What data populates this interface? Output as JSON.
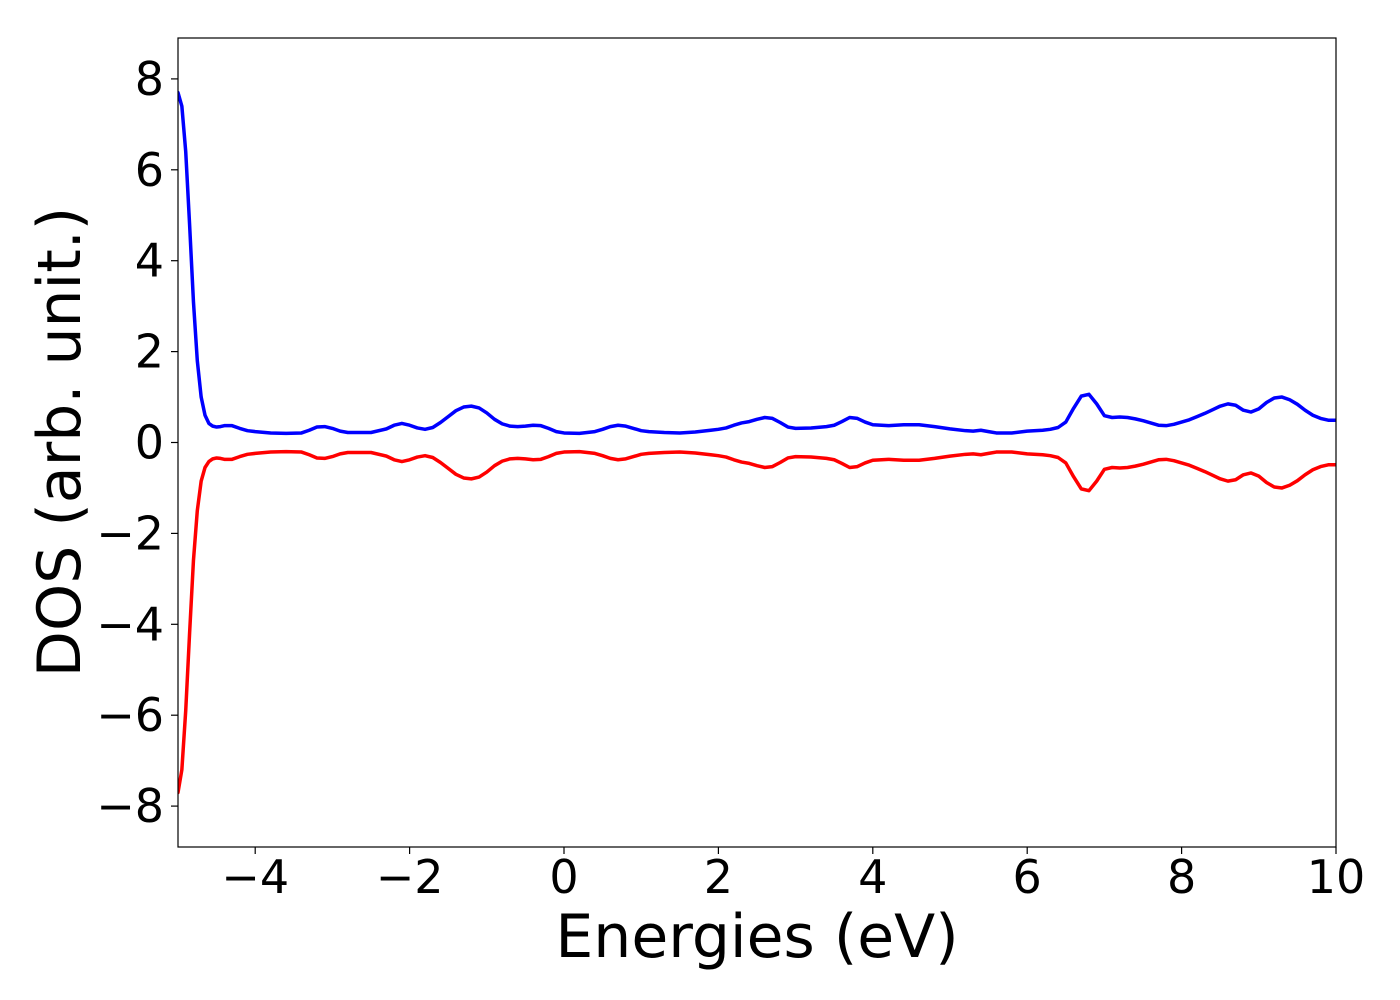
{
  "chart_data": {
    "type": "line",
    "title": "",
    "xlabel": "Energies (eV)",
    "ylabel": "DOS (arb. unit.)",
    "xlim": [
      -5,
      10
    ],
    "ylim": [
      -8.9,
      8.9
    ],
    "x_ticks": [
      -4,
      -2,
      0,
      2,
      4,
      6,
      8,
      10
    ],
    "x_tick_labels": [
      "−4",
      "−2",
      "0",
      "2",
      "4",
      "6",
      "8",
      "10"
    ],
    "y_ticks": [
      8,
      6,
      4,
      2,
      0,
      -2,
      -4,
      -6,
      -8
    ],
    "y_tick_labels": [
      "8",
      "6",
      "4",
      "2",
      "0",
      "−2",
      "−4",
      "−6",
      "−8"
    ],
    "grid": false,
    "legend": "none",
    "series": [
      {
        "color": "#0000ff",
        "x": [
          -5.0,
          -4.95,
          -4.9,
          -4.85,
          -4.8,
          -4.75,
          -4.7,
          -4.65,
          -4.6,
          -4.55,
          -4.5,
          -4.45,
          -4.4,
          -4.3,
          -4.2,
          -4.1,
          -4.0,
          -3.8,
          -3.6,
          -3.4,
          -3.3,
          -3.2,
          -3.1,
          -3.0,
          -2.9,
          -2.8,
          -2.7,
          -2.5,
          -2.3,
          -2.2,
          -2.1,
          -2.0,
          -1.9,
          -1.8,
          -1.7,
          -1.6,
          -1.5,
          -1.4,
          -1.3,
          -1.2,
          -1.1,
          -1.0,
          -0.9,
          -0.8,
          -0.7,
          -0.6,
          -0.5,
          -0.4,
          -0.3,
          -0.2,
          -0.1,
          0.0,
          0.2,
          0.4,
          0.5,
          0.6,
          0.7,
          0.8,
          0.9,
          1.0,
          1.1,
          1.3,
          1.5,
          1.7,
          1.9,
          2.0,
          2.1,
          2.2,
          2.3,
          2.4,
          2.5,
          2.6,
          2.7,
          2.8,
          2.9,
          3.0,
          3.2,
          3.4,
          3.5,
          3.6,
          3.7,
          3.8,
          3.9,
          4.0,
          4.2,
          4.4,
          4.6,
          4.8,
          5.0,
          5.2,
          5.3,
          5.4,
          5.5,
          5.6,
          5.8,
          6.0,
          6.2,
          6.3,
          6.4,
          6.5,
          6.6,
          6.7,
          6.8,
          6.9,
          7.0,
          7.1,
          7.2,
          7.3,
          7.4,
          7.5,
          7.6,
          7.7,
          7.8,
          7.9,
          8.0,
          8.1,
          8.2,
          8.3,
          8.4,
          8.5,
          8.6,
          8.7,
          8.8,
          8.9,
          9.0,
          9.1,
          9.2,
          9.3,
          9.4,
          9.5,
          9.6,
          9.7,
          9.8,
          9.9,
          10.0
        ],
        "y": [
          7.7,
          7.4,
          6.4,
          4.8,
          3.1,
          1.8,
          1.0,
          0.6,
          0.42,
          0.36,
          0.34,
          0.35,
          0.37,
          0.37,
          0.31,
          0.26,
          0.24,
          0.21,
          0.2,
          0.21,
          0.27,
          0.34,
          0.35,
          0.31,
          0.25,
          0.22,
          0.22,
          0.22,
          0.3,
          0.38,
          0.42,
          0.38,
          0.32,
          0.29,
          0.33,
          0.44,
          0.57,
          0.7,
          0.78,
          0.8,
          0.76,
          0.65,
          0.51,
          0.41,
          0.36,
          0.35,
          0.36,
          0.38,
          0.37,
          0.31,
          0.24,
          0.21,
          0.2,
          0.24,
          0.29,
          0.35,
          0.38,
          0.36,
          0.31,
          0.26,
          0.24,
          0.22,
          0.21,
          0.23,
          0.27,
          0.29,
          0.32,
          0.38,
          0.43,
          0.46,
          0.51,
          0.55,
          0.53,
          0.44,
          0.34,
          0.31,
          0.32,
          0.35,
          0.38,
          0.46,
          0.55,
          0.53,
          0.45,
          0.39,
          0.37,
          0.39,
          0.39,
          0.35,
          0.3,
          0.26,
          0.25,
          0.27,
          0.24,
          0.21,
          0.21,
          0.25,
          0.27,
          0.29,
          0.33,
          0.45,
          0.75,
          1.02,
          1.06,
          0.85,
          0.59,
          0.55,
          0.56,
          0.55,
          0.52,
          0.48,
          0.43,
          0.38,
          0.37,
          0.4,
          0.45,
          0.5,
          0.57,
          0.64,
          0.72,
          0.8,
          0.85,
          0.82,
          0.71,
          0.67,
          0.74,
          0.88,
          0.98,
          1.0,
          0.94,
          0.84,
          0.71,
          0.6,
          0.53,
          0.49,
          0.49
        ]
      },
      {
        "color": "#ff0000",
        "x": [
          -5.0,
          -4.95,
          -4.9,
          -4.85,
          -4.8,
          -4.75,
          -4.7,
          -4.65,
          -4.6,
          -4.55,
          -4.5,
          -4.45,
          -4.4,
          -4.3,
          -4.2,
          -4.1,
          -4.0,
          -3.8,
          -3.6,
          -3.4,
          -3.3,
          -3.2,
          -3.1,
          -3.0,
          -2.9,
          -2.8,
          -2.7,
          -2.5,
          -2.3,
          -2.2,
          -2.1,
          -2.0,
          -1.9,
          -1.8,
          -1.7,
          -1.6,
          -1.5,
          -1.4,
          -1.3,
          -1.2,
          -1.1,
          -1.0,
          -0.9,
          -0.8,
          -0.7,
          -0.6,
          -0.5,
          -0.4,
          -0.3,
          -0.2,
          -0.1,
          0.0,
          0.2,
          0.4,
          0.5,
          0.6,
          0.7,
          0.8,
          0.9,
          1.0,
          1.1,
          1.3,
          1.5,
          1.7,
          1.9,
          2.0,
          2.1,
          2.2,
          2.3,
          2.4,
          2.5,
          2.6,
          2.7,
          2.8,
          2.9,
          3.0,
          3.2,
          3.4,
          3.5,
          3.6,
          3.7,
          3.8,
          3.9,
          4.0,
          4.2,
          4.4,
          4.6,
          4.8,
          5.0,
          5.2,
          5.3,
          5.4,
          5.5,
          5.6,
          5.8,
          6.0,
          6.2,
          6.3,
          6.4,
          6.5,
          6.6,
          6.7,
          6.8,
          6.9,
          7.0,
          7.1,
          7.2,
          7.3,
          7.4,
          7.5,
          7.6,
          7.7,
          7.8,
          7.9,
          8.0,
          8.1,
          8.2,
          8.3,
          8.4,
          8.5,
          8.6,
          8.7,
          8.8,
          8.9,
          9.0,
          9.1,
          9.2,
          9.3,
          9.4,
          9.5,
          9.6,
          9.7,
          9.8,
          9.9,
          10.0
        ],
        "y": [
          -7.7,
          -7.2,
          -5.9,
          -4.2,
          -2.6,
          -1.5,
          -0.85,
          -0.55,
          -0.42,
          -0.36,
          -0.34,
          -0.35,
          -0.37,
          -0.37,
          -0.31,
          -0.26,
          -0.24,
          -0.21,
          -0.2,
          -0.21,
          -0.27,
          -0.34,
          -0.35,
          -0.31,
          -0.25,
          -0.22,
          -0.22,
          -0.22,
          -0.3,
          -0.38,
          -0.42,
          -0.38,
          -0.32,
          -0.29,
          -0.33,
          -0.44,
          -0.57,
          -0.7,
          -0.78,
          -0.8,
          -0.76,
          -0.65,
          -0.51,
          -0.41,
          -0.36,
          -0.35,
          -0.36,
          -0.38,
          -0.37,
          -0.31,
          -0.24,
          -0.21,
          -0.2,
          -0.24,
          -0.29,
          -0.35,
          -0.38,
          -0.36,
          -0.31,
          -0.26,
          -0.24,
          -0.22,
          -0.21,
          -0.23,
          -0.27,
          -0.29,
          -0.32,
          -0.38,
          -0.43,
          -0.46,
          -0.51,
          -0.55,
          -0.53,
          -0.44,
          -0.34,
          -0.31,
          -0.32,
          -0.35,
          -0.38,
          -0.46,
          -0.55,
          -0.53,
          -0.45,
          -0.39,
          -0.37,
          -0.39,
          -0.39,
          -0.35,
          -0.3,
          -0.26,
          -0.25,
          -0.27,
          -0.24,
          -0.21,
          -0.21,
          -0.25,
          -0.27,
          -0.29,
          -0.33,
          -0.45,
          -0.75,
          -1.02,
          -1.06,
          -0.85,
          -0.59,
          -0.55,
          -0.56,
          -0.55,
          -0.52,
          -0.48,
          -0.43,
          -0.38,
          -0.37,
          -0.4,
          -0.45,
          -0.5,
          -0.57,
          -0.64,
          -0.72,
          -0.8,
          -0.85,
          -0.82,
          -0.71,
          -0.67,
          -0.74,
          -0.88,
          -0.98,
          -1.0,
          -0.94,
          -0.84,
          -0.71,
          -0.6,
          -0.53,
          -0.49,
          -0.49
        ]
      }
    ]
  }
}
